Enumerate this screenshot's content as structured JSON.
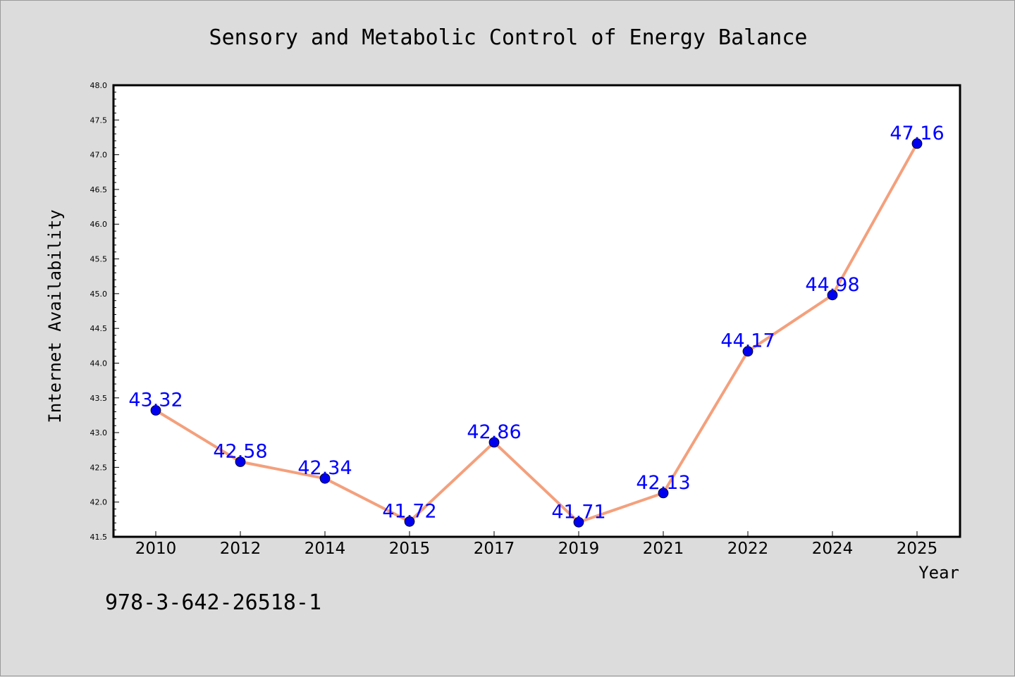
{
  "chart_data": {
    "type": "line",
    "title": "Sensory and Metabolic Control of Energy Balance",
    "xlabel": "Year",
    "ylabel": "Internet Availability",
    "categories": [
      "2010",
      "2012",
      "2014",
      "2015",
      "2017",
      "2019",
      "2021",
      "2022",
      "2024",
      "2025"
    ],
    "series": [
      {
        "values": [
          43.32,
          42.58,
          42.34,
          41.72,
          42.86,
          41.71,
          42.13,
          44.17,
          44.98,
          47.16
        ],
        "line_color": "#f4a07c",
        "marker_color": "#0000ee"
      }
    ],
    "data_labels": [
      "43.32",
      "42.58",
      "42.34",
      "41.72",
      "42.86",
      "41.71",
      "42.13",
      "44.17",
      "44.98",
      "47.16"
    ],
    "ylim": [
      41.5,
      48.0
    ],
    "yticks": [
      "41.5",
      "42.0",
      "42.5",
      "43.0",
      "43.5",
      "44.0",
      "44.5",
      "45.0",
      "45.5",
      "46.0",
      "46.5",
      "47.0",
      "47.5",
      "48.0"
    ],
    "grid": false,
    "legend": "none",
    "label_color": "#0000ff"
  },
  "footer": {
    "isbn": "978-3-642-26518-1"
  }
}
